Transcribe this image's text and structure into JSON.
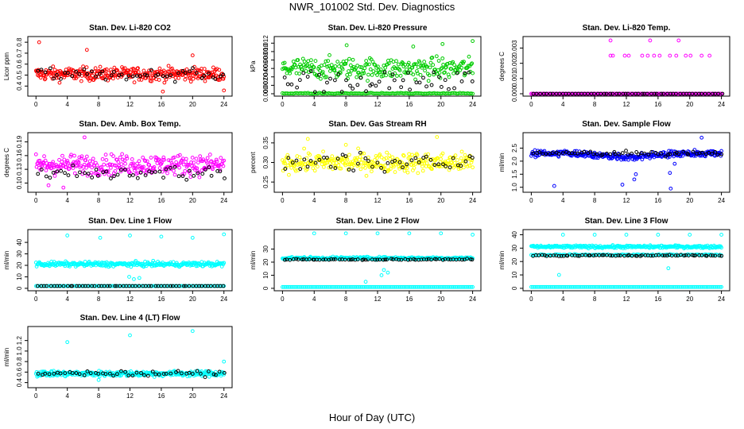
{
  "title": "NWR_101002  Std. Dev. Diagnostics",
  "xlabel": "Hour of Day (UTC)",
  "colors": {
    "red": "#ff0000",
    "green": "#00cc00",
    "magenta": "#ff00ff",
    "yellow": "#ffff00",
    "blue": "#0000ff",
    "cyan": "#00ffff",
    "black": "#000000"
  },
  "chart_data": [
    {
      "type": "scatter",
      "title": "Stan. Dev. Li-820 CO2",
      "ylabel": "Licor ppm",
      "color": "red",
      "xlim": [
        0,
        24
      ],
      "xticks": [
        0,
        4,
        8,
        12,
        16,
        20,
        24
      ],
      "ylim": [
        0.33,
        0.83
      ],
      "yticks": [
        "0.4",
        "0.5",
        "0.6",
        "0.7",
        "0.8"
      ],
      "bands": [
        {
          "kind": "main",
          "center": 0.51,
          "spread": 0.06,
          "count": 320
        }
      ],
      "black_band": {
        "center": 0.5,
        "spread": 0.05,
        "count": 50
      },
      "outliers": [
        {
          "x": 0.4,
          "y": 0.8
        },
        {
          "x": 6.5,
          "y": 0.73
        },
        {
          "x": 20,
          "y": 0.68
        },
        {
          "x": 16.2,
          "y": 0.35
        },
        {
          "x": 24,
          "y": 0.36
        }
      ]
    },
    {
      "type": "scatter",
      "title": "Stan. Dev. Li-820 Pressure",
      "ylabel": "kPa",
      "color": "green",
      "xlim": [
        0,
        24
      ],
      "xticks": [
        0,
        4,
        8,
        12,
        16,
        20,
        24
      ],
      "ylim": [
        0,
        0.013
      ],
      "yticks": [
        "0.000",
        "0.002",
        "0.004",
        "0.006",
        "0.008",
        "0.010",
        "0.012"
      ],
      "bands": [
        {
          "kind": "zero",
          "center": 0.0,
          "spread": 0.0002,
          "count": 120
        },
        {
          "kind": "main",
          "center": 0.006,
          "spread": 0.0025,
          "count": 260
        }
      ],
      "black_band": {
        "center": 0.003,
        "spread": 0.003,
        "count": 50
      },
      "outliers": [
        {
          "x": 8.1,
          "y": 0.0115
        },
        {
          "x": 16.5,
          "y": 0.0112
        },
        {
          "x": 20.2,
          "y": 0.0118
        },
        {
          "x": 24,
          "y": 0.0125
        }
      ]
    },
    {
      "type": "scatter",
      "title": "Stan. Dev. Li-820 Temp.",
      "ylabel": "degrees C",
      "color": "magenta",
      "xlim": [
        0,
        24
      ],
      "xticks": [
        0,
        4,
        8,
        12,
        16,
        20,
        24
      ],
      "ylim": [
        0,
        0.0036
      ],
      "yticks": [
        "0.000",
        "0.001",
        "0.002",
        "0.003"
      ],
      "bands": [
        {
          "kind": "zero",
          "center": 0.0,
          "spread": 0.0,
          "count": 200
        }
      ],
      "black_band": {
        "center": 0.0,
        "spread": 0.0,
        "count": 60
      },
      "outliers": [
        {
          "x": 10,
          "y": 0.0025
        },
        {
          "x": 10.3,
          "y": 0.0025
        },
        {
          "x": 11.8,
          "y": 0.0025
        },
        {
          "x": 12.3,
          "y": 0.0025
        },
        {
          "x": 14,
          "y": 0.0025
        },
        {
          "x": 14.7,
          "y": 0.0025
        },
        {
          "x": 15.5,
          "y": 0.0025
        },
        {
          "x": 16.2,
          "y": 0.0025
        },
        {
          "x": 17.5,
          "y": 0.0025
        },
        {
          "x": 18.3,
          "y": 0.0025
        },
        {
          "x": 19.5,
          "y": 0.0025
        },
        {
          "x": 20.1,
          "y": 0.0025
        },
        {
          "x": 21.5,
          "y": 0.0025
        },
        {
          "x": 22.5,
          "y": 0.0025
        },
        {
          "x": 10,
          "y": 0.0035
        },
        {
          "x": 15,
          "y": 0.0035
        },
        {
          "x": 18.6,
          "y": 0.0035
        }
      ]
    },
    {
      "type": "scatter",
      "title": "Stan. Dev. Amb. Box Temp.",
      "ylabel": "degrees C",
      "color": "magenta",
      "xlim": [
        0,
        24
      ],
      "xticks": [
        0,
        4,
        8,
        12,
        16,
        20,
        24
      ],
      "ylim": [
        0.085,
        0.205
      ],
      "yticks": [
        "0.10",
        "0.13",
        "0.16",
        "0.19"
      ],
      "bands": [
        {
          "kind": "main",
          "center": 0.14,
          "spread": 0.022,
          "count": 300
        }
      ],
      "black_band": {
        "center": 0.12,
        "spread": 0.015,
        "count": 50
      },
      "outliers": [
        {
          "x": 6.2,
          "y": 0.2
        },
        {
          "x": 1.6,
          "y": 0.095
        },
        {
          "x": 3.5,
          "y": 0.09
        }
      ]
    },
    {
      "type": "scatter",
      "title": "Stan. Dev. Gas Stream RH",
      "ylabel": "percent",
      "color": "yellow",
      "xlim": [
        0,
        24
      ],
      "xticks": [
        0,
        4,
        8,
        12,
        16,
        20,
        24
      ],
      "ylim": [
        0.23,
        0.37
      ],
      "yticks": [
        "0.25",
        "0.30",
        "0.35"
      ],
      "bands": [
        {
          "kind": "main",
          "center": 0.3,
          "spread": 0.025,
          "count": 300
        }
      ],
      "black_band": {
        "center": 0.3,
        "spread": 0.025,
        "count": 50
      },
      "outliers": [
        {
          "x": 19.5,
          "y": 0.365
        },
        {
          "x": 8,
          "y": 0.345
        },
        {
          "x": 3.2,
          "y": 0.36
        }
      ]
    },
    {
      "type": "scatter",
      "title": "Stan. Dev. Sample Flow",
      "ylabel": "ml/min",
      "color": "blue",
      "xlim": [
        0,
        24
      ],
      "xticks": [
        0,
        4,
        8,
        12,
        16,
        20,
        24
      ],
      "ylim": [
        0.9,
        3.0
      ],
      "yticks": [
        "1.0",
        "1.5",
        "2.0",
        "2.5"
      ],
      "bands": [
        {
          "kind": "flow",
          "center": 2.3,
          "spread": 0.12,
          "count": 320
        }
      ],
      "black_band": {
        "center": 2.3,
        "spread": 0.08,
        "count": 60
      },
      "outliers": [
        {
          "x": 2.9,
          "y": 1.05
        },
        {
          "x": 11.5,
          "y": 1.1
        },
        {
          "x": 13,
          "y": 1.3
        },
        {
          "x": 13.2,
          "y": 1.5
        },
        {
          "x": 17.6,
          "y": 0.95
        },
        {
          "x": 17.5,
          "y": 1.55
        },
        {
          "x": 18.1,
          "y": 1.9
        },
        {
          "x": 21.5,
          "y": 2.9
        }
      ]
    },
    {
      "type": "scatter",
      "title": "Stan. Dev. Line 1 Flow",
      "ylabel": "ml/min",
      "color": "cyan",
      "xlim": [
        0,
        24
      ],
      "xticks": [
        0,
        4,
        8,
        12,
        16,
        20,
        24
      ],
      "ylim": [
        0,
        49
      ],
      "yticks": [
        "0",
        "10",
        "20",
        "30",
        "40"
      ],
      "bands": [
        {
          "kind": "main",
          "center": 21,
          "spread": 2,
          "count": 280
        },
        {
          "kind": "zero",
          "center": 2,
          "spread": 0,
          "count": 140
        }
      ],
      "black_band": {
        "center": 2,
        "spread": 0,
        "count": 60
      },
      "outliers": [
        {
          "x": 4,
          "y": 46
        },
        {
          "x": 8.2,
          "y": 44
        },
        {
          "x": 12,
          "y": 46
        },
        {
          "x": 16,
          "y": 45
        },
        {
          "x": 20,
          "y": 44
        },
        {
          "x": 24,
          "y": 47
        },
        {
          "x": 12.5,
          "y": 8
        },
        {
          "x": 13.2,
          "y": 9
        },
        {
          "x": 11.9,
          "y": 10
        }
      ]
    },
    {
      "type": "scatter",
      "title": "Stan. Dev. Line 2 Flow",
      "ylabel": "ml/min",
      "color": "cyan",
      "xlim": [
        0,
        24
      ],
      "xticks": [
        0,
        4,
        8,
        12,
        16,
        20,
        24
      ],
      "ylim": [
        0,
        43
      ],
      "yticks": [
        "0",
        "10",
        "20",
        "30"
      ],
      "bands": [
        {
          "kind": "main",
          "center": 23,
          "spread": 1,
          "count": 280
        },
        {
          "kind": "zero",
          "center": 1,
          "spread": 0,
          "count": 140
        }
      ],
      "black_band": {
        "center": 22,
        "spread": 0.5,
        "count": 70
      },
      "outliers": [
        {
          "x": 4,
          "y": 42
        },
        {
          "x": 8,
          "y": 42
        },
        {
          "x": 12,
          "y": 42
        },
        {
          "x": 16,
          "y": 42
        },
        {
          "x": 20,
          "y": 42
        },
        {
          "x": 24,
          "y": 41
        },
        {
          "x": 10.5,
          "y": 5
        },
        {
          "x": 12.5,
          "y": 10
        },
        {
          "x": 12.8,
          "y": 14
        },
        {
          "x": 13.3,
          "y": 12
        },
        {
          "x": 10.8,
          "y": 24
        }
      ]
    },
    {
      "type": "scatter",
      "title": "Stan. Dev. Line 3 Flow",
      "ylabel": "ml/min",
      "color": "cyan",
      "xlim": [
        0,
        24
      ],
      "xticks": [
        0,
        4,
        8,
        12,
        16,
        20,
        24
      ],
      "ylim": [
        0,
        42
      ],
      "yticks": [
        "0",
        "10",
        "20",
        "30",
        "40"
      ],
      "bands": [
        {
          "kind": "main",
          "center": 31,
          "spread": 1,
          "count": 260
        },
        {
          "kind": "mid",
          "center": 25,
          "spread": 0.5,
          "count": 120
        },
        {
          "kind": "zero",
          "center": 1,
          "spread": 0,
          "count": 140
        }
      ],
      "black_band": {
        "center": 24.5,
        "spread": 0.4,
        "count": 70
      },
      "outliers": [
        {
          "x": 4,
          "y": 40
        },
        {
          "x": 8,
          "y": 40
        },
        {
          "x": 12,
          "y": 40
        },
        {
          "x": 16,
          "y": 40
        },
        {
          "x": 20,
          "y": 40
        },
        {
          "x": 24,
          "y": 40
        },
        {
          "x": 3.5,
          "y": 10
        },
        {
          "x": 17.3,
          "y": 15
        }
      ]
    },
    {
      "type": "scatter",
      "title": "Stan. Dev. Line 4 (LT) Flow",
      "ylabel": "ml/min",
      "color": "cyan",
      "xlim": [
        0,
        24
      ],
      "xticks": [
        0,
        4,
        8,
        12,
        16,
        20,
        24
      ],
      "ylim": [
        0.35,
        1.42
      ],
      "yticks": [
        "0.4",
        "0.6",
        "0.8",
        "1.0",
        "1.2"
      ],
      "bands": [
        {
          "kind": "main",
          "center": 0.57,
          "spread": 0.05,
          "count": 320
        }
      ],
      "black_band": {
        "center": 0.57,
        "spread": 0.05,
        "count": 50
      },
      "outliers": [
        {
          "x": 4,
          "y": 1.17
        },
        {
          "x": 12,
          "y": 1.3
        },
        {
          "x": 20,
          "y": 1.38
        },
        {
          "x": 24,
          "y": 0.8
        },
        {
          "x": 8,
          "y": 0.45
        }
      ]
    }
  ]
}
